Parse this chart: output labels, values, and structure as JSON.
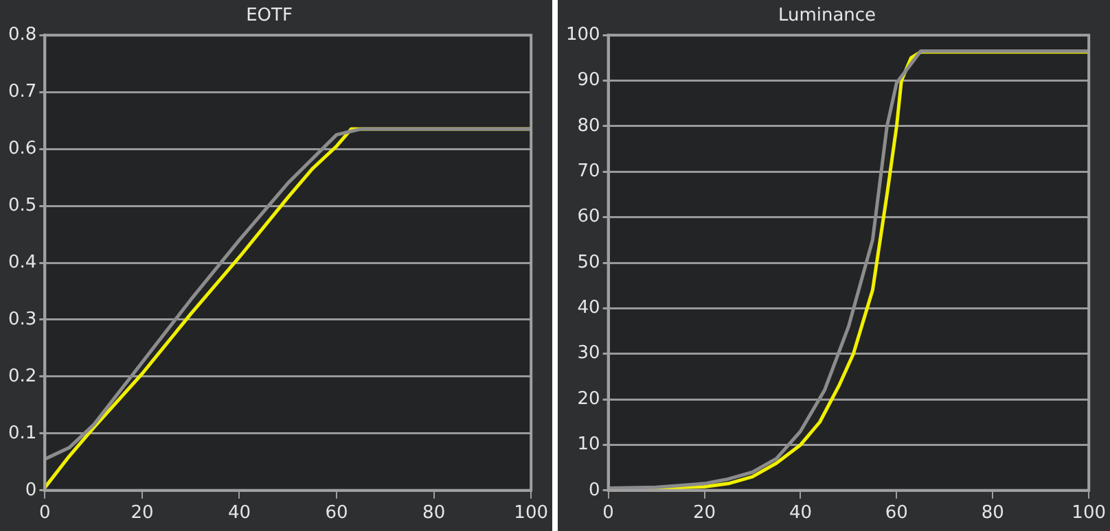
{
  "chart_data": [
    {
      "type": "line",
      "title": "EOTF",
      "x": [
        0,
        5,
        10,
        20,
        30,
        40,
        50,
        60,
        65,
        100
      ],
      "grid": "y",
      "marker": "none",
      "line_style": "solid",
      "xlim": [
        0,
        100
      ],
      "xticks": [
        0,
        20,
        40,
        60,
        80,
        100
      ],
      "ylim": [
        0,
        0.8
      ],
      "yticks": [
        0,
        0.1,
        0.2,
        0.3,
        0.4,
        0.5,
        0.6,
        0.7,
        0.8
      ],
      "series": [
        {
          "color": "#8c8c8c",
          "values": [
            0.055,
            0.075,
            0.115,
            0.225,
            0.335,
            0.44,
            0.54,
            0.625,
            0.635,
            0.635
          ]
        },
        {
          "color": "#f0f000",
          "x": [
            0,
            5,
            10,
            20,
            30,
            40,
            50,
            55,
            60,
            63,
            100
          ],
          "values": [
            0.005,
            0.06,
            0.11,
            0.205,
            0.31,
            0.41,
            0.515,
            0.565,
            0.605,
            0.635,
            0.635
          ]
        }
      ]
    },
    {
      "type": "line",
      "title": "Luminance",
      "x": [
        0,
        10,
        20,
        25,
        30,
        35,
        40,
        45,
        50,
        55,
        58,
        60,
        65,
        100
      ],
      "grid": "y",
      "marker": "none",
      "line_style": "solid",
      "xlim": [
        0,
        100
      ],
      "xticks": [
        0,
        20,
        40,
        60,
        80,
        100
      ],
      "ylim": [
        0,
        100
      ],
      "yticks": [
        0,
        10,
        20,
        30,
        40,
        50,
        60,
        70,
        80,
        90,
        100
      ],
      "series": [
        {
          "color": "#8c8c8c",
          "values": [
            0.5,
            0.7,
            1.5,
            2.5,
            4,
            7,
            13,
            22,
            36,
            55,
            80,
            89.5,
            96.5,
            96.5
          ]
        },
        {
          "color": "#f0f000",
          "x": [
            0,
            10,
            20,
            25,
            30,
            35,
            40,
            44,
            48,
            51,
            55,
            58,
            60,
            61,
            63,
            65,
            100
          ],
          "values": [
            0.3,
            0.5,
            0.8,
            1.5,
            3,
            6,
            10,
            15,
            23,
            30,
            44,
            65,
            80,
            90,
            95,
            96.3,
            96.3
          ]
        }
      ]
    }
  ]
}
